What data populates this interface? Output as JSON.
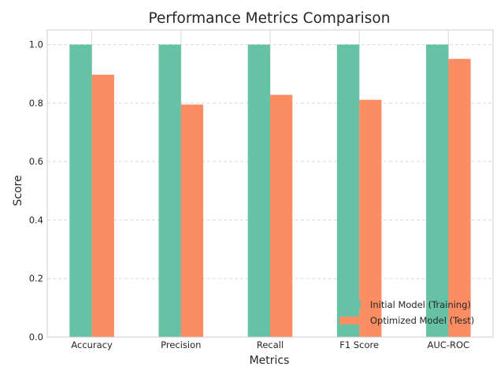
{
  "chart_data": {
    "type": "bar",
    "title": "Performance Metrics Comparison",
    "xlabel": "Metrics",
    "ylabel": "Score",
    "categories": [
      "Accuracy",
      "Precision",
      "Recall",
      "F1 Score",
      "AUC-ROC"
    ],
    "series": [
      {
        "name": "Initial Model (Training)",
        "color": "#66c2a5",
        "values": [
          1.0,
          1.0,
          1.0,
          1.0,
          1.0
        ]
      },
      {
        "name": "Optimized Model (Test)",
        "color": "#fc8d62",
        "values": [
          0.897,
          0.795,
          0.828,
          0.811,
          0.951
        ]
      }
    ],
    "ylim": [
      0,
      1.05
    ],
    "yticks": [
      "0.0",
      "0.2",
      "0.4",
      "0.6",
      "0.8",
      "1.0"
    ],
    "grid": true,
    "legend_position": "lower-right"
  }
}
